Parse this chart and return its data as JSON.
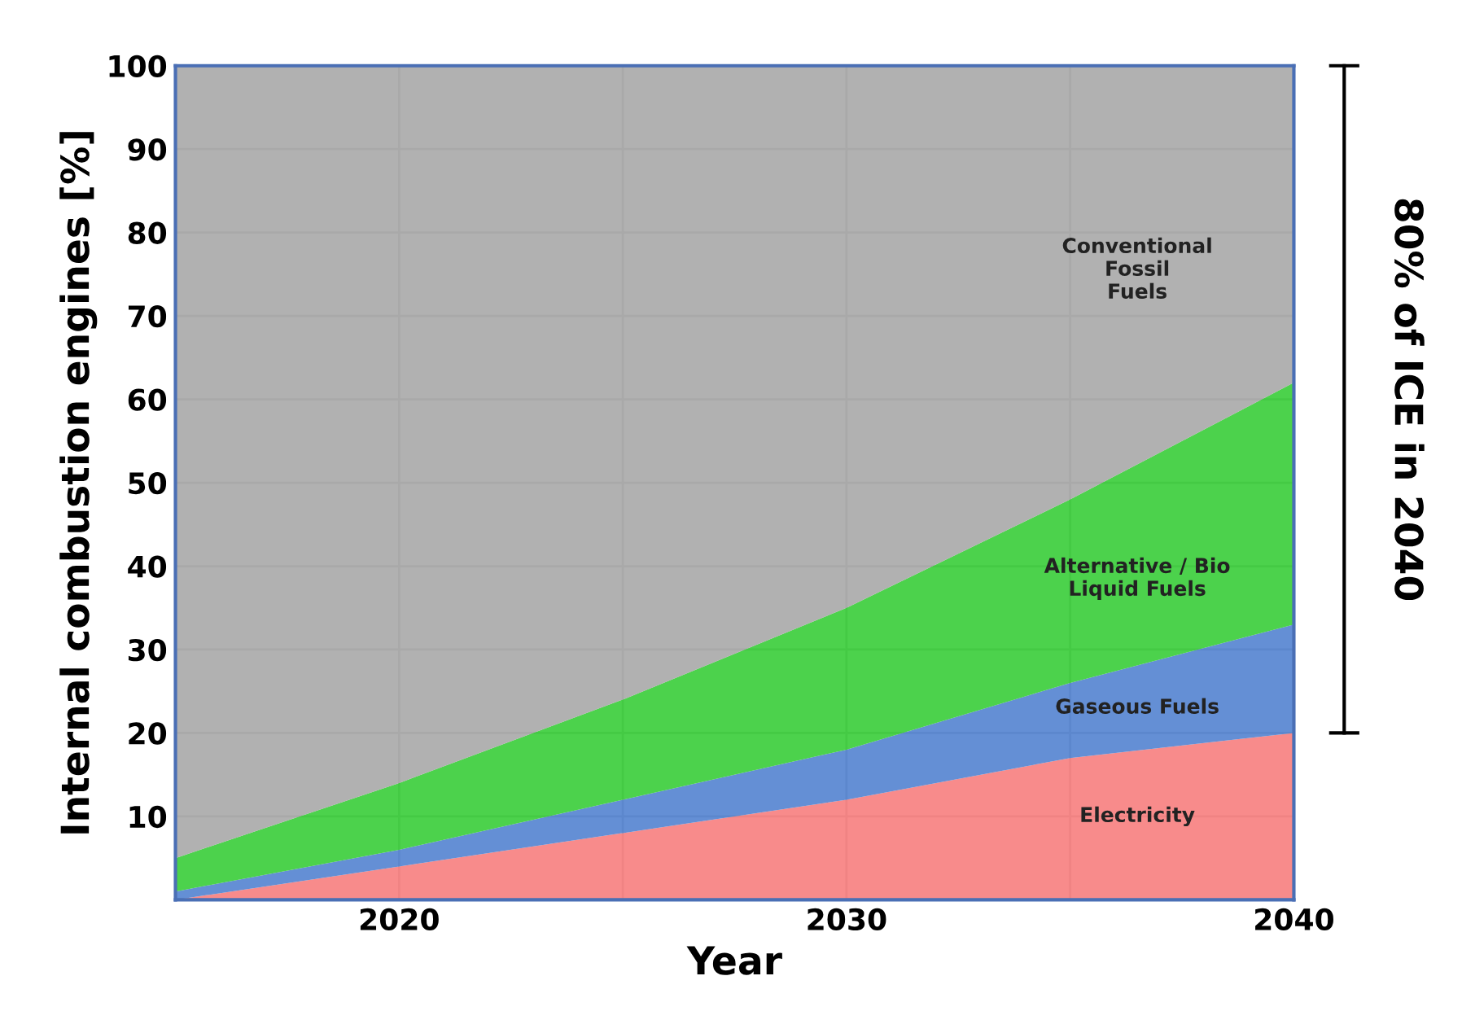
{
  "chart_data": {
    "type": "area",
    "stacked": true,
    "xlabel": "Year",
    "ylabel": "Internal combustion engines [%]",
    "x": [
      2015,
      2020,
      2025,
      2030,
      2035,
      2040
    ],
    "series": [
      {
        "name": "Electricity",
        "color": "#f77b7b",
        "values": [
          0,
          4,
          8,
          12,
          17,
          20
        ]
      },
      {
        "name": "Gaseous Fuels",
        "color": "#4f7fcf",
        "values": [
          1,
          2,
          4,
          6,
          9,
          13
        ]
      },
      {
        "name": "Alternative / Bio\nLiquid Fuels",
        "color": "#33cc33",
        "values": [
          4,
          8,
          12,
          17,
          22,
          29
        ]
      },
      {
        "name": "Conventional\nFossil\nFuels",
        "color": "#a6a6a6",
        "values": [
          95,
          86,
          76,
          65,
          52,
          38
        ]
      }
    ],
    "xlim": [
      2015,
      2040
    ],
    "ylim": [
      0,
      100
    ],
    "xticks": [
      2020,
      {
        "value": 2025,
        "label": null
      },
      2030,
      {
        "value": 2035,
        "label": null
      },
      2040
    ],
    "yticks": [
      {
        "value": 0,
        "label": null
      },
      10,
      20,
      30,
      40,
      50,
      60,
      70,
      80,
      90,
      100
    ],
    "grid": true,
    "legend": false,
    "annotations": [
      "80% of ICE in 2040"
    ]
  }
}
